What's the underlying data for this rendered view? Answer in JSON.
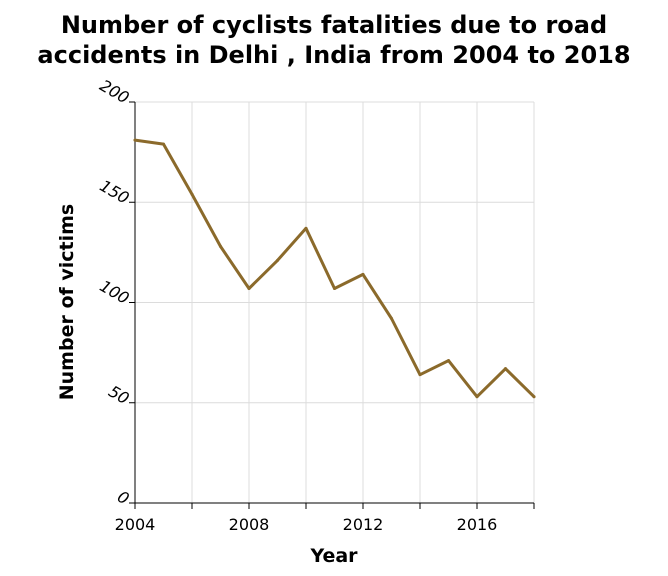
{
  "chart_data": {
    "type": "line",
    "title_lines": [
      "Number of cyclists fatalities due to road",
      "accidents in Delhi , India from 2004 to 2018"
    ],
    "xlabel": "Year",
    "ylabel": "Number of victims",
    "x": [
      2004,
      2005,
      2006,
      2007,
      2008,
      2009,
      2010,
      2011,
      2012,
      2013,
      2014,
      2015,
      2016,
      2017,
      2018
    ],
    "series": [
      {
        "name": "Number of victims",
        "color": "#8b6a2b",
        "values": [
          181,
          179,
          154,
          128,
          107,
          121,
          137,
          107,
          114,
          92,
          64,
          71,
          53,
          67,
          53
        ]
      }
    ],
    "xlim": [
      2004,
      2018
    ],
    "ylim": [
      0,
      200
    ],
    "xticks": [
      2004,
      2008,
      2012,
      2016
    ],
    "xtick_labels": [
      "2004",
      "2008",
      "2012",
      "2016"
    ],
    "yticks": [
      0,
      50,
      100,
      150,
      200
    ],
    "ytick_labels": [
      "0",
      "50",
      "100",
      "150",
      "200"
    ],
    "grid": true
  }
}
